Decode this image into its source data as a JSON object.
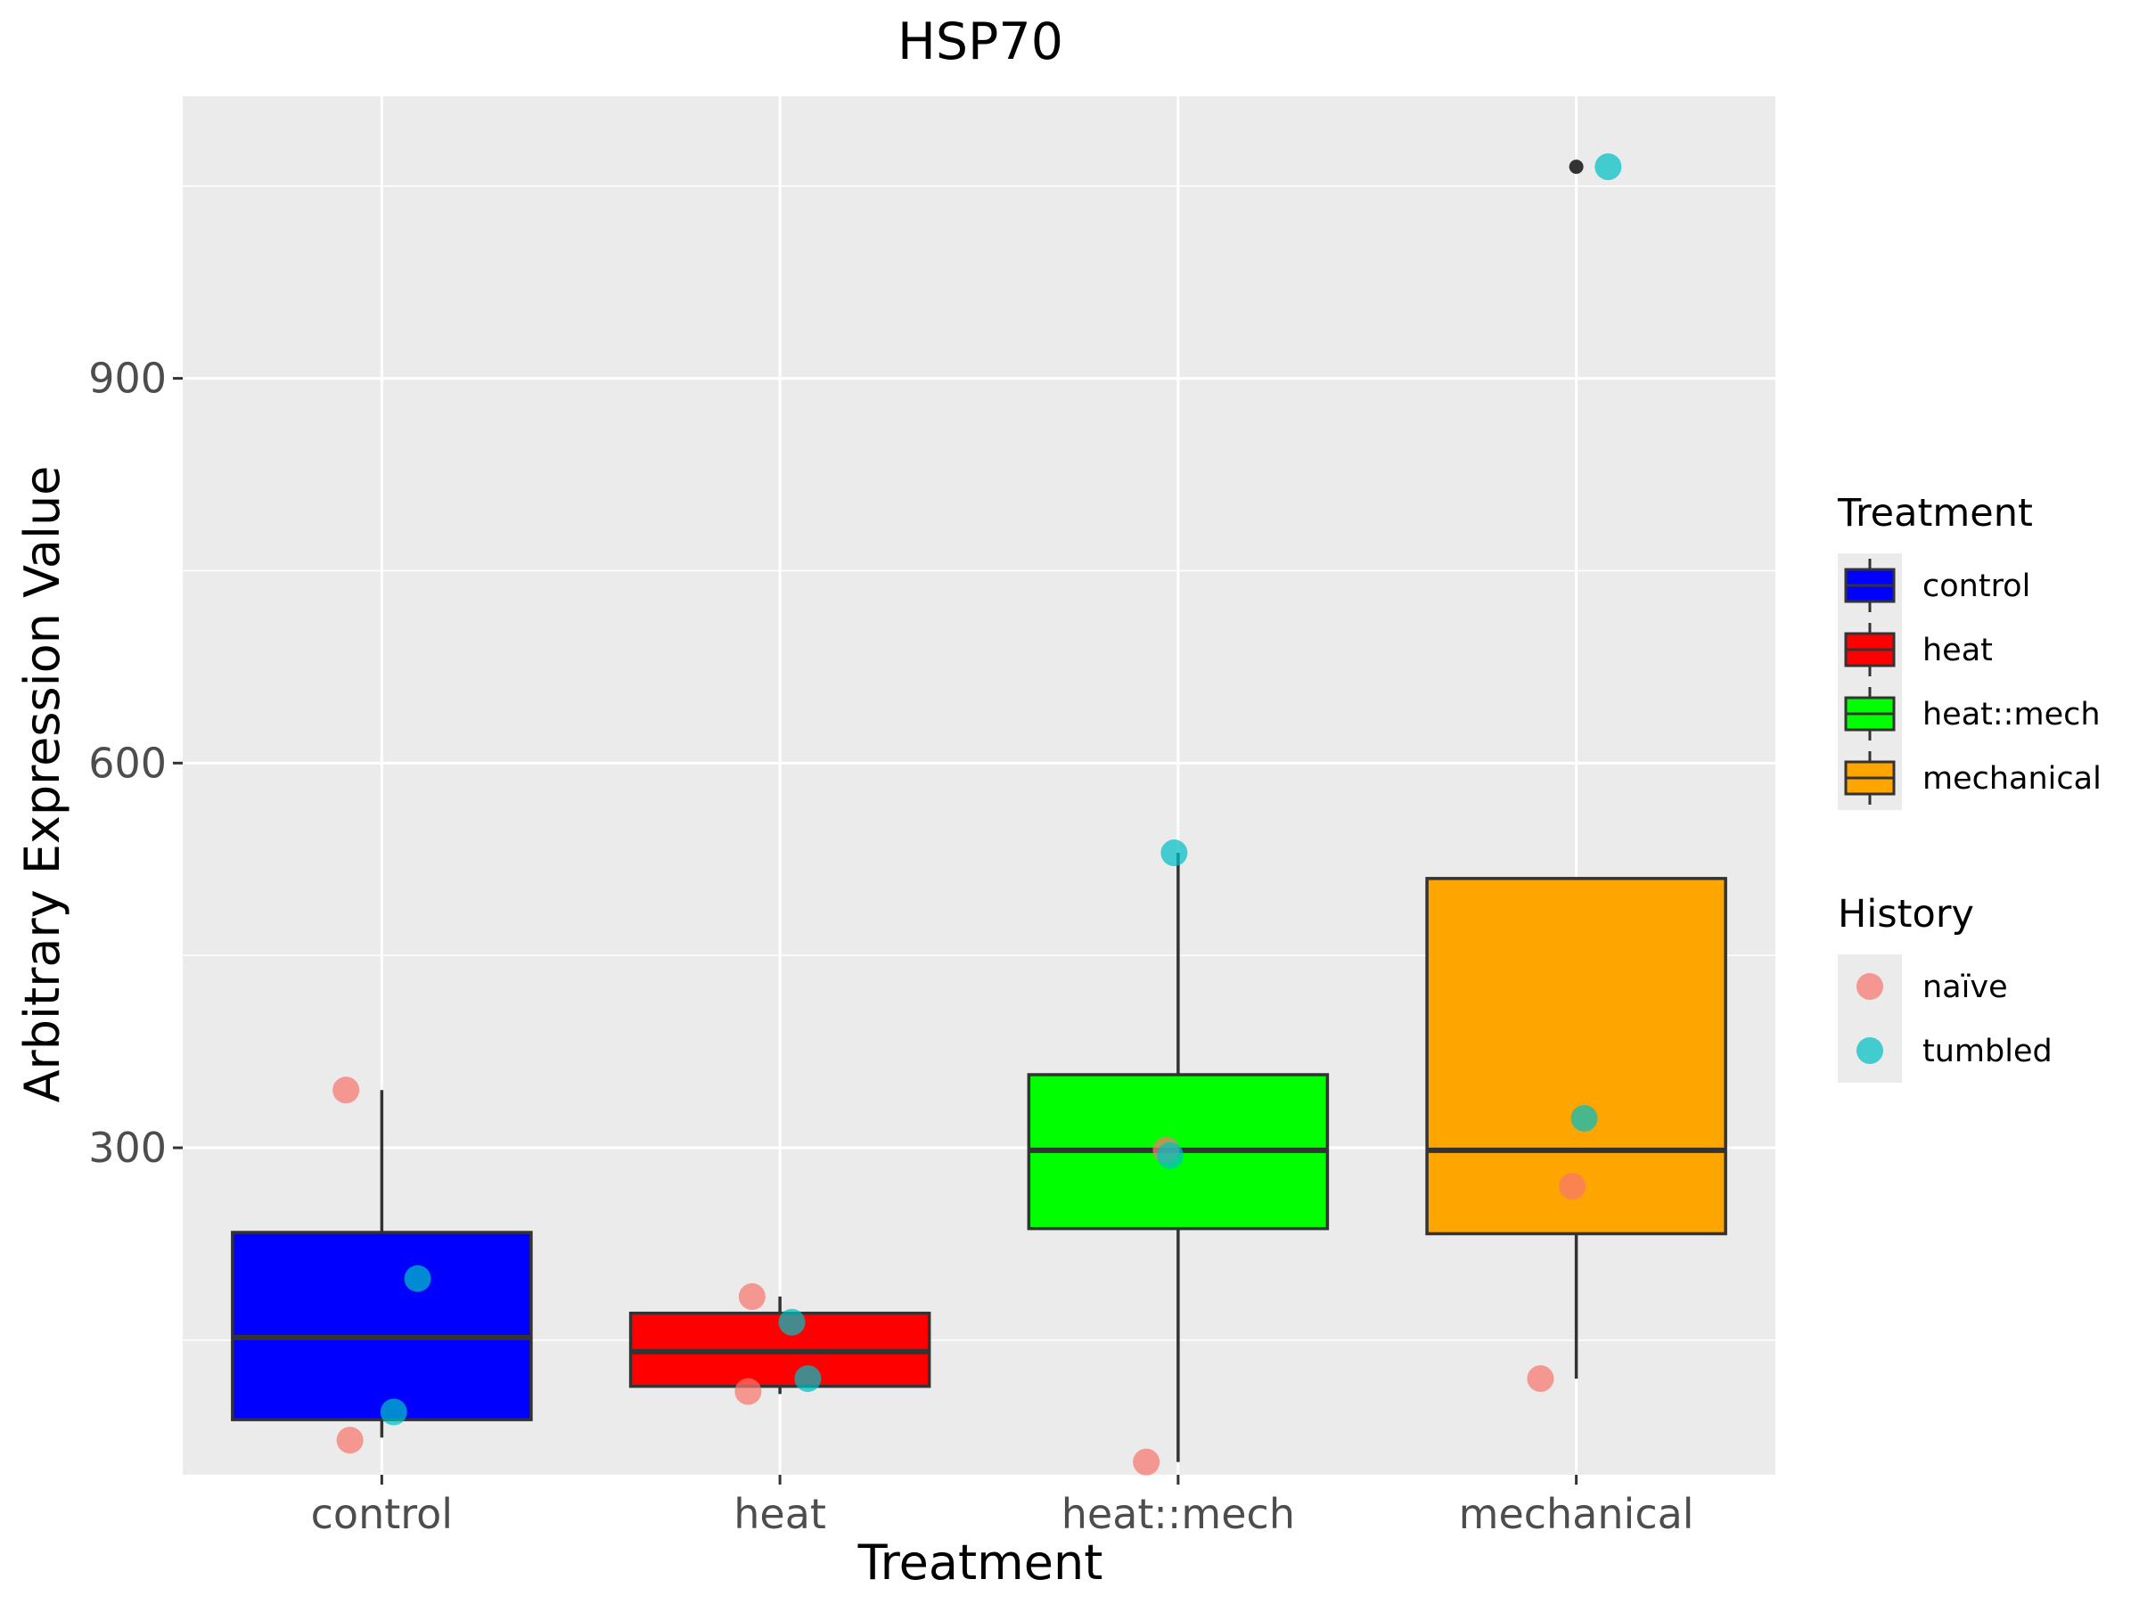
{
  "chart_data": {
    "type": "box",
    "title": "HSP70",
    "xlabel": "Treatment",
    "ylabel": "Arbitrary Expression Value",
    "categories": [
      "control",
      "heat",
      "heat::mech",
      "mechanical"
    ],
    "ylim": [
      45,
      1120
    ],
    "yticks": [
      300,
      600,
      900
    ],
    "grid": true,
    "boxes": [
      {
        "category": "control",
        "fill": "#0000ff",
        "whisker_low": 74,
        "q1": 88,
        "median": 152,
        "q3": 234,
        "whisker_high": 345,
        "outliers": []
      },
      {
        "category": "heat",
        "fill": "#ff0000",
        "whisker_low": 108,
        "q1": 114,
        "median": 141,
        "q3": 171,
        "whisker_high": 184,
        "outliers": []
      },
      {
        "category": "heat::mech",
        "fill": "#00ff00",
        "whisker_low": 55,
        "q1": 237,
        "median": 298,
        "q3": 357,
        "whisker_high": 530,
        "outliers": []
      },
      {
        "category": "mechanical",
        "fill": "#ffa500",
        "whisker_low": 120,
        "q1": 233,
        "median": 298,
        "q3": 510,
        "whisker_high": 510,
        "outliers": [
          1065
        ]
      }
    ],
    "points": [
      {
        "category": "control",
        "history": "naïve",
        "y": 345,
        "jitter": -0.09
      },
      {
        "category": "control",
        "history": "naïve",
        "y": 72,
        "jitter": -0.08
      },
      {
        "category": "control",
        "history": "tumbled",
        "y": 198,
        "jitter": 0.09
      },
      {
        "category": "control",
        "history": "tumbled",
        "y": 94,
        "jitter": 0.03
      },
      {
        "category": "heat",
        "history": "naïve",
        "y": 184,
        "jitter": -0.07
      },
      {
        "category": "heat",
        "history": "naïve",
        "y": 110,
        "jitter": -0.08
      },
      {
        "category": "heat",
        "history": "tumbled",
        "y": 164,
        "jitter": 0.03
      },
      {
        "category": "heat",
        "history": "tumbled",
        "y": 120,
        "jitter": 0.07
      },
      {
        "category": "heat::mech",
        "history": "naïve",
        "y": 55,
        "jitter": -0.08
      },
      {
        "category": "heat::mech",
        "history": "naïve",
        "y": 298,
        "jitter": -0.03
      },
      {
        "category": "heat::mech",
        "history": "tumbled",
        "y": 530,
        "jitter": -0.01
      },
      {
        "category": "heat::mech",
        "history": "tumbled",
        "y": 294,
        "jitter": -0.02
      },
      {
        "category": "mechanical",
        "history": "naïve",
        "y": 270,
        "jitter": -0.01
      },
      {
        "category": "mechanical",
        "history": "naïve",
        "y": 120,
        "jitter": -0.09
      },
      {
        "category": "mechanical",
        "history": "tumbled",
        "y": 1065,
        "jitter": 0.08
      },
      {
        "category": "mechanical",
        "history": "tumbled",
        "y": 323,
        "jitter": 0.02
      }
    ],
    "legends": [
      {
        "title": "Treatment",
        "kind": "box",
        "entries": [
          {
            "label": "control",
            "color": "#0000ff"
          },
          {
            "label": "heat",
            "color": "#ff0000"
          },
          {
            "label": "heat::mech",
            "color": "#00ff00"
          },
          {
            "label": "mechanical",
            "color": "#ffa500"
          }
        ]
      },
      {
        "title": "History",
        "kind": "point",
        "entries": [
          {
            "label": "naïve",
            "color": "#f8766d"
          },
          {
            "label": "tumbled",
            "color": "#00bfc4"
          }
        ]
      }
    ],
    "legend_position": "right",
    "colors": {
      "panel_bg": "#ebebeb",
      "grid": "#ffffff",
      "box_line": "#333333",
      "naive": "#f8766d",
      "tumbled": "#00bfc4"
    }
  }
}
